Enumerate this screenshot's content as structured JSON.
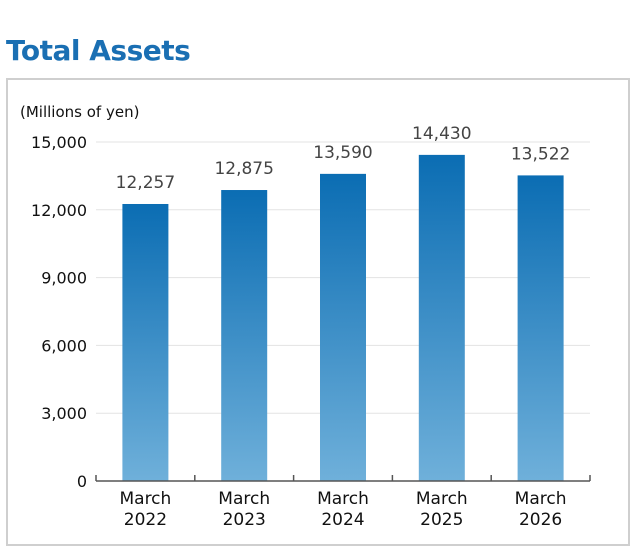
{
  "page": {
    "title": "Total Assets"
  },
  "chart_data": {
    "type": "bar",
    "title": "Total Assets",
    "unit_label": "(Millions of yen)",
    "categories": [
      [
        "March",
        "2022"
      ],
      [
        "March",
        "2023"
      ],
      [
        "March",
        "2024"
      ],
      [
        "March",
        "2025"
      ],
      [
        "March",
        "2026"
      ]
    ],
    "values": [
      12257,
      12875,
      13590,
      14430,
      13522
    ],
    "value_labels": [
      "12,257",
      "12,875",
      "13,590",
      "14,430",
      "13,522"
    ],
    "y_ticks": [
      0,
      3000,
      6000,
      9000,
      12000,
      15000
    ],
    "y_tick_labels": [
      "0",
      "3,000",
      "6,000",
      "9,000",
      "12,000",
      "15,000"
    ],
    "ylim": [
      0,
      15000
    ],
    "grid": true,
    "colors": {
      "bar_top": "#0b6db3",
      "bar_bottom": "#6fb0da",
      "title": "#1a6fb3"
    }
  }
}
